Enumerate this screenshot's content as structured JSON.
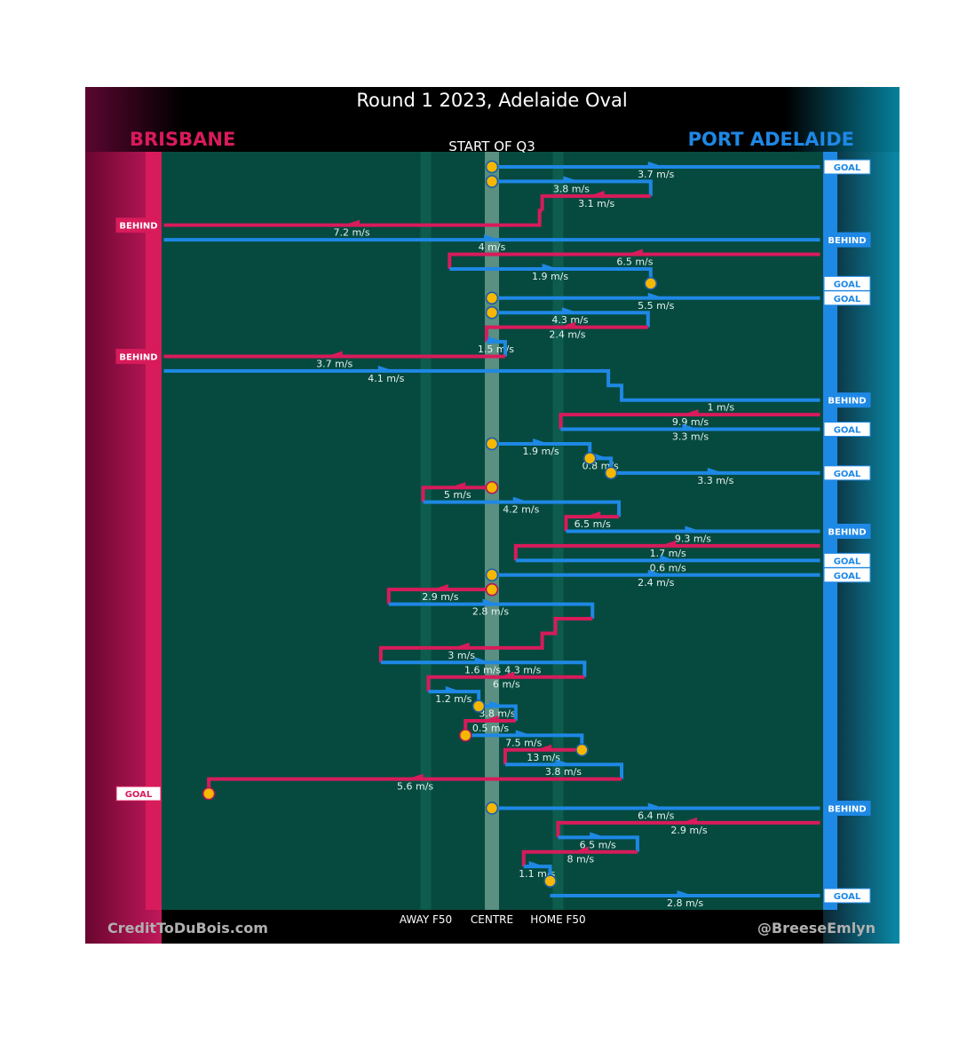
{
  "title": "Round 1 2023, Adelaide Oval",
  "subtitle": "START OF Q3",
  "teams": {
    "left": {
      "name": "BRISBANE",
      "color": "#d81b5b"
    },
    "right": {
      "name": "PORT ADELAIDE",
      "color": "#1e88e5"
    }
  },
  "colors": {
    "field": "#064a3f",
    "band": "#0d5c4d",
    "centre_band": "#5a8f82",
    "marker_fill": "#f5b700",
    "marker_stroke": "#b0145a",
    "speed_label": "#e6f2ef"
  },
  "credits": {
    "left": "CreditToDuBois.com",
    "right": "@BreeseEmlyn"
  },
  "chart_data": {
    "type": "line",
    "title": "Round 1 2023, Adelaide Oval",
    "subtitle": "START OF Q3",
    "x_axis_labels": [
      "AWAY F50",
      "CENTRE",
      "HOME F50"
    ],
    "x_domain": [
      -125,
      125
    ],
    "x_markers": {
      "AWAY F50": -25,
      "CENTRE": 0,
      "HOME F50": 25
    },
    "chains": [
      {
        "team": "port",
        "path": [
          [
            0,
            1
          ],
          [
            124,
            1
          ]
        ],
        "speed": "3.7 m/s",
        "result": "GOAL",
        "end_circle": false,
        "start_circle": true
      },
      {
        "team": "port",
        "path": [
          [
            0,
            2
          ],
          [
            60,
            2
          ],
          [
            60,
            3
          ]
        ],
        "speed": "3.8 m/s",
        "result": "",
        "end_circle": false,
        "start_circle": true
      },
      {
        "team": "bris",
        "path": [
          [
            60,
            3
          ],
          [
            19,
            3
          ],
          [
            19,
            4
          ]
        ],
        "speed": "3.1 m/s",
        "result": "",
        "end_circle": false,
        "start_circle": false
      },
      {
        "team": "bris",
        "path": [
          [
            19,
            4
          ],
          [
            18,
            4
          ],
          [
            18,
            5
          ],
          [
            -124,
            5
          ]
        ],
        "speed": "7.2 m/s",
        "result": "BEHIND",
        "end_circle": false,
        "start_circle": false
      },
      {
        "team": "port",
        "path": [
          [
            -124,
            6
          ],
          [
            124,
            6
          ]
        ],
        "speed": "4 m/s",
        "result": "BEHIND",
        "end_circle": false,
        "start_circle": false
      },
      {
        "team": "bris",
        "path": [
          [
            124,
            7
          ],
          [
            -16,
            7
          ],
          [
            -16,
            8
          ]
        ],
        "speed": "6.5 m/s",
        "result": "",
        "end_circle": false,
        "start_circle": false
      },
      {
        "team": "port",
        "path": [
          [
            -16,
            8
          ],
          [
            60,
            8
          ],
          [
            60,
            9
          ]
        ],
        "speed": "1.9 m/s",
        "result": "GOAL",
        "end_circle": true,
        "start_circle": false
      },
      {
        "team": "port",
        "path": [
          [
            0,
            10
          ],
          [
            124,
            10
          ]
        ],
        "speed": "5.5 m/s",
        "result": "GOAL",
        "end_circle": false,
        "start_circle": true
      },
      {
        "team": "port",
        "path": [
          [
            0,
            11
          ],
          [
            59,
            11
          ],
          [
            59,
            12
          ]
        ],
        "speed": "4.3 m/s",
        "result": "",
        "end_circle": false,
        "start_circle": true
      },
      {
        "team": "bris",
        "path": [
          [
            59,
            12
          ],
          [
            -2,
            12
          ],
          [
            -2,
            13
          ]
        ],
        "speed": "2.4 m/s",
        "result": "",
        "end_circle": false,
        "start_circle": false
      },
      {
        "team": "port",
        "path": [
          [
            -2,
            13
          ],
          [
            5,
            13
          ],
          [
            5,
            14
          ]
        ],
        "speed": "1.5 m/s",
        "result": "",
        "end_circle": false,
        "start_circle": false
      },
      {
        "team": "bris",
        "path": [
          [
            5,
            14
          ],
          [
            -124,
            14
          ]
        ],
        "speed": "3.7 m/s",
        "result": "BEHIND",
        "end_circle": false,
        "start_circle": false
      },
      {
        "team": "port",
        "path": [
          [
            -124,
            15
          ],
          [
            44,
            15
          ],
          [
            44,
            16
          ],
          [
            49,
            16
          ],
          [
            49,
            17
          ],
          [
            124,
            17
          ]
        ],
        "speed": "4.1 m/s",
        "speed2": "1 m/s",
        "result": "BEHIND",
        "end_circle": false,
        "start_circle": false
      },
      {
        "team": "bris",
        "path": [
          [
            124,
            18
          ],
          [
            26,
            18
          ],
          [
            26,
            19
          ]
        ],
        "speed": "9.9 m/s",
        "result": "",
        "end_circle": false,
        "start_circle": false
      },
      {
        "team": "port",
        "path": [
          [
            26,
            19
          ],
          [
            124,
            19
          ]
        ],
        "speed": "3.3 m/s",
        "result": "GOAL",
        "end_circle": false,
        "start_circle": false
      },
      {
        "team": "port",
        "path": [
          [
            0,
            20
          ],
          [
            37,
            20
          ],
          [
            37,
            21
          ]
        ],
        "speed": "1.9 m/s",
        "result": "",
        "end_circle": true,
        "start_circle": true
      },
      {
        "team": "port",
        "path": [
          [
            37,
            21
          ],
          [
            45,
            21
          ],
          [
            45,
            22
          ]
        ],
        "speed": "0.8 m/s",
        "result": "",
        "end_circle": true,
        "start_circle": false
      },
      {
        "team": "port",
        "path": [
          [
            45,
            22
          ],
          [
            124,
            22
          ]
        ],
        "speed": "3.3 m/s",
        "result": "GOAL",
        "end_circle": false,
        "start_circle": false
      },
      {
        "team": "bris",
        "path": [
          [
            0,
            23
          ],
          [
            -26,
            23
          ],
          [
            -26,
            24
          ]
        ],
        "speed": "5 m/s",
        "result": "",
        "end_circle": false,
        "start_circle": true
      },
      {
        "team": "port",
        "path": [
          [
            -26,
            24
          ],
          [
            48,
            24
          ],
          [
            48,
            25
          ]
        ],
        "speed": "4.2 m/s",
        "result": "",
        "end_circle": false,
        "start_circle": false
      },
      {
        "team": "bris",
        "path": [
          [
            48,
            25
          ],
          [
            28,
            25
          ],
          [
            28,
            26
          ]
        ],
        "speed": "6.5 m/s",
        "result": "",
        "end_circle": false,
        "start_circle": false
      },
      {
        "team": "port",
        "path": [
          [
            28,
            26
          ],
          [
            124,
            26
          ]
        ],
        "speed": "9.3 m/s",
        "result": "BEHIND",
        "end_circle": false,
        "start_circle": false
      },
      {
        "team": "bris",
        "path": [
          [
            124,
            27
          ],
          [
            9,
            27
          ],
          [
            9,
            28
          ]
        ],
        "speed": "1.7 m/s",
        "result": "",
        "end_circle": false,
        "start_circle": false
      },
      {
        "team": "port",
        "path": [
          [
            9,
            28
          ],
          [
            124,
            28
          ]
        ],
        "speed": "0.6 m/s",
        "result": "GOAL",
        "end_circle": false,
        "start_circle": false
      },
      {
        "team": "port",
        "path": [
          [
            0,
            29
          ],
          [
            124,
            29
          ]
        ],
        "speed": "2.4 m/s",
        "result": "GOAL",
        "end_circle": false,
        "start_circle": true
      },
      {
        "team": "bris",
        "path": [
          [
            0,
            30
          ],
          [
            -39,
            30
          ],
          [
            -39,
            31
          ]
        ],
        "speed": "2.9 m/s",
        "result": "",
        "end_circle": false,
        "start_circle": true
      },
      {
        "team": "port",
        "path": [
          [
            -39,
            31
          ],
          [
            38,
            31
          ],
          [
            38,
            32
          ]
        ],
        "speed": "2.8 m/s",
        "result": "",
        "end_circle": false,
        "start_circle": false
      },
      {
        "team": "bris",
        "path": [
          [
            38,
            32
          ],
          [
            24,
            32
          ],
          [
            24,
            33
          ],
          [
            19,
            33
          ],
          [
            19,
            34
          ],
          [
            -42,
            34
          ],
          [
            -42,
            35
          ]
        ],
        "speed": "3 m/s",
        "speed2": "4.3 m/s",
        "result": "",
        "end_circle": false,
        "start_circle": false
      },
      {
        "team": "port",
        "path": [
          [
            -42,
            35
          ],
          [
            35,
            35
          ],
          [
            35,
            36
          ]
        ],
        "speed": "1.6 m/s",
        "result": "",
        "end_circle": false,
        "start_circle": false
      },
      {
        "team": "bris",
        "path": [
          [
            35,
            36
          ],
          [
            -24,
            36
          ],
          [
            -24,
            37
          ]
        ],
        "speed": "6 m/s",
        "result": "",
        "end_circle": false,
        "start_circle": false
      },
      {
        "team": "port",
        "path": [
          [
            -24,
            37
          ],
          [
            -5,
            37
          ],
          [
            -5,
            38
          ]
        ],
        "speed": "1.2 m/s",
        "result": "",
        "end_circle": true,
        "start_circle": false
      },
      {
        "team": "port",
        "path": [
          [
            -5,
            38
          ],
          [
            9,
            38
          ],
          [
            9,
            39
          ]
        ],
        "speed": "3.8 m/s",
        "result": "",
        "end_circle": false,
        "start_circle": false
      },
      {
        "team": "bris",
        "path": [
          [
            9,
            39
          ],
          [
            -10,
            39
          ],
          [
            -10,
            40
          ]
        ],
        "speed": "0.5 m/s",
        "result": "",
        "end_circle": true,
        "start_circle": false
      },
      {
        "team": "port",
        "path": [
          [
            -10,
            40
          ],
          [
            34,
            40
          ],
          [
            34,
            41
          ]
        ],
        "speed": "7.5 m/s",
        "result": "",
        "end_circle": true,
        "start_circle": false
      },
      {
        "team": "bris",
        "path": [
          [
            34,
            41
          ],
          [
            5,
            41
          ],
          [
            5,
            42
          ]
        ],
        "speed": "13 m/s",
        "result": "",
        "end_circle": false,
        "start_circle": false
      },
      {
        "team": "port",
        "path": [
          [
            5,
            42
          ],
          [
            49,
            42
          ],
          [
            49,
            43
          ]
        ],
        "speed": "3.8 m/s",
        "result": "",
        "end_circle": false,
        "start_circle": false
      },
      {
        "team": "bris",
        "path": [
          [
            49,
            43
          ],
          [
            -107,
            43
          ],
          [
            -107,
            44
          ]
        ],
        "speed": "5.6 m/s",
        "result": "GOAL",
        "end_circle": true,
        "start_circle": false
      },
      {
        "team": "port",
        "path": [
          [
            0,
            45
          ],
          [
            124,
            45
          ]
        ],
        "speed": "6.4 m/s",
        "result": "BEHIND",
        "end_circle": false,
        "start_circle": true
      },
      {
        "team": "bris",
        "path": [
          [
            124,
            46
          ],
          [
            25,
            46
          ],
          [
            25,
            47
          ]
        ],
        "speed": "2.9 m/s",
        "result": "",
        "end_circle": false,
        "start_circle": false
      },
      {
        "team": "port",
        "path": [
          [
            25,
            47
          ],
          [
            55,
            47
          ],
          [
            55,
            48
          ]
        ],
        "speed": "6.5 m/s",
        "result": "",
        "end_circle": false,
        "start_circle": false
      },
      {
        "team": "bris",
        "path": [
          [
            55,
            48
          ],
          [
            12,
            48
          ],
          [
            12,
            49
          ]
        ],
        "speed": "8 m/s",
        "result": "",
        "end_circle": false,
        "start_circle": false
      },
      {
        "team": "port",
        "path": [
          [
            12,
            49
          ],
          [
            22,
            49
          ],
          [
            22,
            50
          ]
        ],
        "speed": "1.1 m/s",
        "result": "",
        "end_circle": true,
        "start_circle": false
      },
      {
        "team": "port",
        "path": [
          [
            22,
            51
          ],
          [
            124,
            51
          ]
        ],
        "speed": "2.8 m/s",
        "result": "GOAL",
        "end_circle": false,
        "start_circle": false
      }
    ]
  }
}
